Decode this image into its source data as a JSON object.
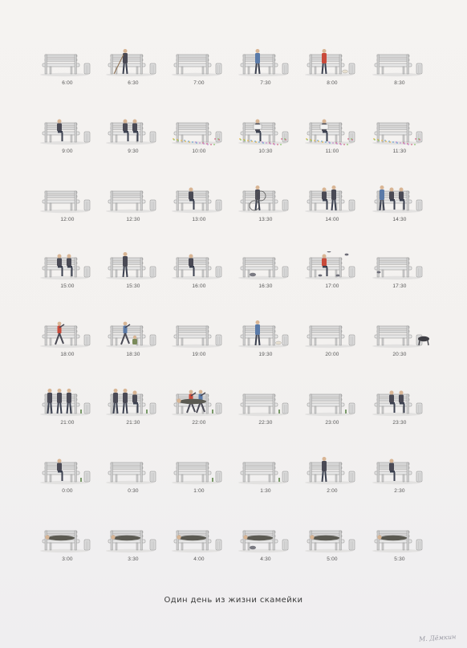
{
  "poster": {
    "title": "Один день из жизни скамейки",
    "signature": "М. Дёмкин"
  },
  "colors": {
    "bench": "#d9d9d9",
    "bench_edge": "#8c8c8c",
    "figure_dark": "#4a4a55",
    "figure_accent": "#c94a3a"
  },
  "scenes": [
    {
      "time": "6:00",
      "figures": [],
      "prop": ""
    },
    {
      "time": "6:30",
      "figures": [
        "sweeper"
      ],
      "prop": "broom"
    },
    {
      "time": "7:00",
      "figures": [],
      "prop": ""
    },
    {
      "time": "7:30",
      "figures": [
        "walker"
      ],
      "prop": ""
    },
    {
      "time": "8:00",
      "figures": [
        "walker"
      ],
      "prop": "small-dog"
    },
    {
      "time": "8:30",
      "figures": [],
      "prop": ""
    },
    {
      "time": "9:00",
      "figures": [
        "sitter"
      ],
      "prop": "child"
    },
    {
      "time": "9:30",
      "figures": [
        "sitter",
        "sitter"
      ],
      "prop": "child"
    },
    {
      "time": "10:00",
      "figures": [],
      "prop": "confetti"
    },
    {
      "time": "10:30",
      "figures": [
        "reader"
      ],
      "prop": "confetti"
    },
    {
      "time": "11:00",
      "figures": [
        "reader"
      ],
      "prop": "confetti"
    },
    {
      "time": "11:30",
      "figures": [],
      "prop": "confetti"
    },
    {
      "time": "12:00",
      "figures": [],
      "prop": ""
    },
    {
      "time": "12:30",
      "figures": [],
      "prop": ""
    },
    {
      "time": "13:00",
      "figures": [
        "sitter"
      ],
      "prop": ""
    },
    {
      "time": "13:30",
      "figures": [
        "cyclist"
      ],
      "prop": "bicycle"
    },
    {
      "time": "14:00",
      "figures": [
        "sitter",
        "stander"
      ],
      "prop": ""
    },
    {
      "time": "14:30",
      "figures": [
        "sitter",
        "sitter",
        "walker"
      ],
      "prop": ""
    },
    {
      "time": "15:00",
      "figures": [
        "sitter",
        "sitter"
      ],
      "prop": ""
    },
    {
      "time": "15:30",
      "figures": [
        "stander"
      ],
      "prop": ""
    },
    {
      "time": "16:00",
      "figures": [
        "sitter"
      ],
      "prop": ""
    },
    {
      "time": "16:30",
      "figures": [],
      "prop": "cat"
    },
    {
      "time": "17:00",
      "figures": [
        "feeder"
      ],
      "prop": "pigeons"
    },
    {
      "time": "17:30",
      "figures": [],
      "prop": "pigeon"
    },
    {
      "time": "18:00",
      "figures": [
        "runner"
      ],
      "prop": ""
    },
    {
      "time": "18:30",
      "figures": [
        "dancer",
        "crouch"
      ],
      "prop": ""
    },
    {
      "time": "19:00",
      "figures": [],
      "prop": ""
    },
    {
      "time": "19:30",
      "figures": [
        "walker"
      ],
      "prop": "small-dog"
    },
    {
      "time": "20:00",
      "figures": [],
      "prop": ""
    },
    {
      "time": "20:30",
      "figures": [],
      "prop": "big-dog"
    },
    {
      "time": "21:00",
      "figures": [
        "stander",
        "stander",
        "stander"
      ],
      "prop": "bottle"
    },
    {
      "time": "21:30",
      "figures": [
        "stander",
        "sitter",
        "stander"
      ],
      "prop": "bottle"
    },
    {
      "time": "22:00",
      "figures": [
        "fighter",
        "fighter",
        "lying"
      ],
      "prop": "bottle"
    },
    {
      "time": "22:30",
      "figures": [],
      "prop": "bottle"
    },
    {
      "time": "23:00",
      "figures": [],
      "prop": "bottle"
    },
    {
      "time": "23:30",
      "figures": [
        "sitter",
        "sitter"
      ],
      "prop": ""
    },
    {
      "time": "0:00",
      "figures": [
        "sitter"
      ],
      "prop": "bottle"
    },
    {
      "time": "0:30",
      "figures": [],
      "prop": ""
    },
    {
      "time": "1:00",
      "figures": [],
      "prop": "bottle"
    },
    {
      "time": "1:30",
      "figures": [],
      "prop": "bottle"
    },
    {
      "time": "2:00",
      "figures": [
        "drinker"
      ],
      "prop": ""
    },
    {
      "time": "2:30",
      "figures": [
        "sitter"
      ],
      "prop": ""
    },
    {
      "time": "3:00",
      "figures": [
        "lying"
      ],
      "prop": ""
    },
    {
      "time": "3:30",
      "figures": [
        "lying"
      ],
      "prop": ""
    },
    {
      "time": "4:00",
      "figures": [
        "lying"
      ],
      "prop": ""
    },
    {
      "time": "4:30",
      "figures": [
        "lying"
      ],
      "prop": "cat"
    },
    {
      "time": "5:00",
      "figures": [
        "lying"
      ],
      "prop": ""
    },
    {
      "time": "5:30",
      "figures": [
        "lying"
      ],
      "prop": ""
    }
  ]
}
